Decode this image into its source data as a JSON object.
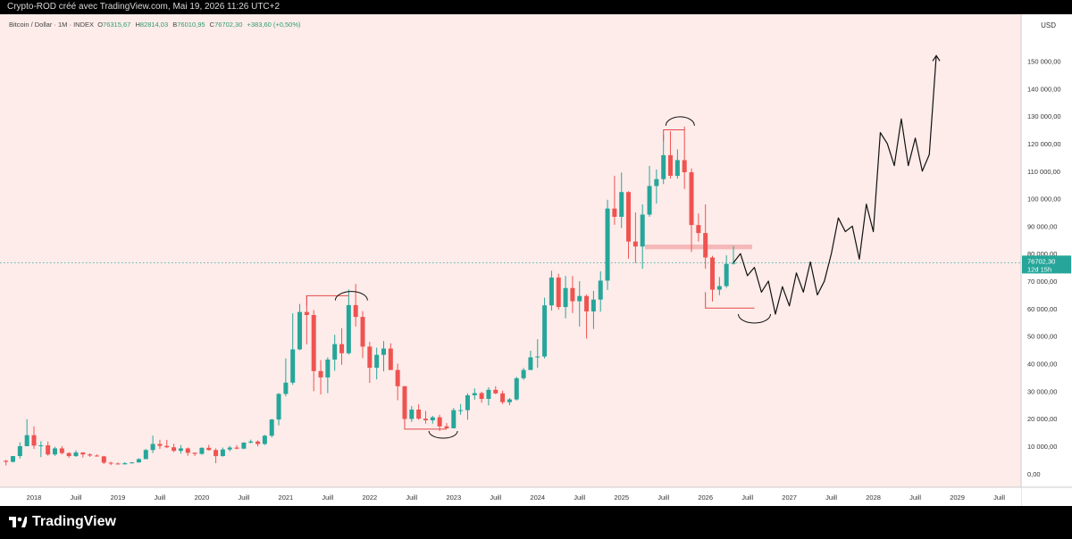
{
  "header": {
    "caption": "Crypto-ROD créé avec TradingView.com, Mai 19, 2026 11:26 UTC+2"
  },
  "legend": {
    "symbol": "Bitcoin / Dollar · 1M · INDEX",
    "open_label": "O",
    "open": "76315,67",
    "high_label": "H",
    "high": "82814,03",
    "low_label": "B",
    "low": "76010,95",
    "close_label": "C",
    "close": "76702,30",
    "change": "+383,60 (+0,50%)"
  },
  "price_axis": {
    "currency": "USD",
    "current_price": "76702,30",
    "countdown": "12d 15h"
  },
  "footer": {
    "brand": "TradingView"
  },
  "colors": {
    "up": "#26a69a",
    "down": "#ef5350",
    "background": "#fdecea",
    "zone": "#f5b8b8"
  },
  "chart_data": {
    "type": "candlestick",
    "title": "Bitcoin / Dollar · 1M · INDEX",
    "ylim": [
      0,
      160000
    ],
    "y_ticks": [
      0,
      10000,
      20000,
      30000,
      40000,
      50000,
      60000,
      70000,
      80000,
      90000,
      100000,
      110000,
      120000,
      130000,
      140000,
      150000
    ],
    "y_tick_labels": [
      "0,00",
      "10 000,00",
      "20 000,00",
      "30 000,00",
      "40 000,00",
      "50 000,00",
      "60 000,00",
      "70 000,00",
      "80 000,00",
      "90 000,00",
      "100 000,00",
      "110 000,00",
      "120 000,00",
      "130 000,00",
      "140 000,00",
      "150 000,00"
    ],
    "x_ticks": [
      {
        "date": "2018-01",
        "label": "2018"
      },
      {
        "date": "2018-07",
        "label": "Juill"
      },
      {
        "date": "2019-01",
        "label": "2019"
      },
      {
        "date": "2019-07",
        "label": "Juill"
      },
      {
        "date": "2020-01",
        "label": "2020"
      },
      {
        "date": "2020-07",
        "label": "Juill"
      },
      {
        "date": "2021-01",
        "label": "2021"
      },
      {
        "date": "2021-07",
        "label": "Juill"
      },
      {
        "date": "2022-01",
        "label": "2022"
      },
      {
        "date": "2022-07",
        "label": "Juill"
      },
      {
        "date": "2023-01",
        "label": "2023"
      },
      {
        "date": "2023-07",
        "label": "Juill"
      },
      {
        "date": "2024-01",
        "label": "2024"
      },
      {
        "date": "2024-07",
        "label": "Juill"
      },
      {
        "date": "2025-01",
        "label": "2025"
      },
      {
        "date": "2025-07",
        "label": "Juill"
      },
      {
        "date": "2026-01",
        "label": "2026"
      },
      {
        "date": "2026-07",
        "label": "Juill"
      },
      {
        "date": "2027-01",
        "label": "2027"
      },
      {
        "date": "2027-07",
        "label": "Juill"
      },
      {
        "date": "2028-01",
        "label": "2028"
      },
      {
        "date": "2028-07",
        "label": "Juill"
      },
      {
        "date": "2029-01",
        "label": "2029"
      },
      {
        "date": "2029-07",
        "label": "Juill"
      }
    ],
    "columns": [
      "date",
      "open",
      "high",
      "low",
      "close"
    ],
    "candles": [
      [
        "2017-09",
        4700,
        5000,
        3000,
        4300
      ],
      [
        "2017-10",
        4300,
        6400,
        4100,
        6400
      ],
      [
        "2017-11",
        6400,
        11400,
        5500,
        10000
      ],
      [
        "2017-12",
        10000,
        19800,
        10000,
        14000
      ],
      [
        "2018-01",
        14000,
        17200,
        9000,
        10200
      ],
      [
        "2018-02",
        10200,
        11800,
        6000,
        10300
      ],
      [
        "2018-03",
        10300,
        11700,
        6500,
        7000
      ],
      [
        "2018-04",
        7000,
        9800,
        6500,
        9200
      ],
      [
        "2018-05",
        9200,
        10000,
        7000,
        7500
      ],
      [
        "2018-06",
        7500,
        7800,
        5800,
        6400
      ],
      [
        "2018-07",
        6400,
        8500,
        6100,
        7700
      ],
      [
        "2018-08",
        7700,
        7800,
        5900,
        7000
      ],
      [
        "2018-09",
        7000,
        7400,
        6100,
        6600
      ],
      [
        "2018-10",
        6600,
        7000,
        6200,
        6300
      ],
      [
        "2018-11",
        6300,
        6500,
        3500,
        4000
      ],
      [
        "2018-12",
        4000,
        4300,
        3100,
        3700
      ],
      [
        "2019-01",
        3700,
        4100,
        3300,
        3400
      ],
      [
        "2019-02",
        3400,
        4200,
        3400,
        3800
      ],
      [
        "2019-03",
        3800,
        4200,
        3700,
        4100
      ],
      [
        "2019-04",
        4100,
        5600,
        4000,
        5300
      ],
      [
        "2019-05",
        5300,
        9000,
        5300,
        8600
      ],
      [
        "2019-06",
        8600,
        13800,
        7500,
        10800
      ],
      [
        "2019-07",
        10800,
        12300,
        9000,
        10100
      ],
      [
        "2019-08",
        10100,
        12300,
        9300,
        9600
      ],
      [
        "2019-09",
        9600,
        10900,
        7800,
        8300
      ],
      [
        "2019-10",
        8300,
        10400,
        7300,
        9200
      ],
      [
        "2019-11",
        9200,
        9500,
        6500,
        7600
      ],
      [
        "2019-12",
        7600,
        7700,
        6400,
        7200
      ],
      [
        "2020-01",
        7200,
        9600,
        6900,
        9400
      ],
      [
        "2020-02",
        9400,
        10500,
        8400,
        8600
      ],
      [
        "2020-03",
        8600,
        9200,
        3800,
        6400
      ],
      [
        "2020-04",
        6400,
        9500,
        6200,
        8800
      ],
      [
        "2020-05",
        8800,
        10100,
        8100,
        9500
      ],
      [
        "2020-06",
        9500,
        10400,
        8900,
        9100
      ],
      [
        "2020-07",
        9100,
        11400,
        8900,
        11300
      ],
      [
        "2020-08",
        11300,
        12400,
        11000,
        11700
      ],
      [
        "2020-09",
        11700,
        12100,
        9900,
        10800
      ],
      [
        "2020-10",
        10800,
        14100,
        10400,
        13800
      ],
      [
        "2020-11",
        13800,
        19900,
        13200,
        19700
      ],
      [
        "2020-12",
        19700,
        29300,
        17600,
        29000
      ],
      [
        "2021-01",
        29000,
        41900,
        28100,
        33100
      ],
      [
        "2021-02",
        33100,
        58300,
        32300,
        45200
      ],
      [
        "2021-03",
        45200,
        61700,
        44900,
        58800
      ],
      [
        "2021-04",
        58800,
        64800,
        47000,
        57700
      ],
      [
        "2021-05",
        57700,
        59500,
        30000,
        37300
      ],
      [
        "2021-06",
        37300,
        41300,
        28800,
        35000
      ],
      [
        "2021-07",
        35000,
        42300,
        29300,
        41500
      ],
      [
        "2021-08",
        41500,
        50500,
        37400,
        47100
      ],
      [
        "2021-09",
        47100,
        52900,
        39600,
        43800
      ],
      [
        "2021-10",
        43800,
        67000,
        43300,
        61300
      ],
      [
        "2021-11",
        61300,
        69000,
        53500,
        57000
      ],
      [
        "2021-12",
        57000,
        59100,
        42000,
        46200
      ],
      [
        "2022-01",
        46200,
        47900,
        33000,
        38500
      ],
      [
        "2022-02",
        38500,
        45800,
        34300,
        43200
      ],
      [
        "2022-03",
        43200,
        48200,
        37200,
        45500
      ],
      [
        "2022-04",
        45500,
        47400,
        37700,
        37700
      ],
      [
        "2022-05",
        37700,
        40000,
        26700,
        31800
      ],
      [
        "2022-06",
        31800,
        31900,
        17600,
        19900
      ],
      [
        "2022-07",
        19900,
        24600,
        18800,
        23300
      ],
      [
        "2022-08",
        23300,
        25200,
        19600,
        20000
      ],
      [
        "2022-09",
        20000,
        22800,
        18200,
        19400
      ],
      [
        "2022-10",
        19400,
        21000,
        18200,
        20500
      ],
      [
        "2022-11",
        20500,
        21400,
        15500,
        17200
      ],
      [
        "2022-12",
        17200,
        18400,
        16300,
        16500
      ],
      [
        "2023-01",
        16500,
        23900,
        16500,
        23100
      ],
      [
        "2023-02",
        23100,
        25300,
        21400,
        23100
      ],
      [
        "2023-03",
        23100,
        29200,
        19600,
        28500
      ],
      [
        "2023-04",
        28500,
        31000,
        26900,
        29300
      ],
      [
        "2023-05",
        29300,
        29800,
        25800,
        27200
      ],
      [
        "2023-06",
        27200,
        31400,
        24800,
        30500
      ],
      [
        "2023-07",
        30500,
        31800,
        28900,
        29200
      ],
      [
        "2023-08",
        29200,
        30200,
        25300,
        26000
      ],
      [
        "2023-09",
        26000,
        27500,
        24900,
        27000
      ],
      [
        "2023-10",
        27000,
        35200,
        26600,
        34700
      ],
      [
        "2023-11",
        34700,
        38400,
        34100,
        37700
      ],
      [
        "2023-12",
        37700,
        44700,
        37700,
        42300
      ],
      [
        "2024-01",
        42300,
        48900,
        38500,
        42600
      ],
      [
        "2024-02",
        42600,
        64000,
        41900,
        61200
      ],
      [
        "2024-03",
        61200,
        73800,
        59300,
        71300
      ],
      [
        "2024-04",
        71300,
        72700,
        59600,
        60600
      ],
      [
        "2024-05",
        60600,
        71900,
        56500,
        67500
      ],
      [
        "2024-06",
        67500,
        71900,
        58400,
        62700
      ],
      [
        "2024-07",
        62700,
        70000,
        53500,
        64600
      ],
      [
        "2024-08",
        64600,
        65100,
        49100,
        59000
      ],
      [
        "2024-09",
        59000,
        66500,
        52600,
        63300
      ],
      [
        "2024-10",
        63300,
        73600,
        58900,
        70200
      ],
      [
        "2024-11",
        70200,
        99600,
        66800,
        96400
      ],
      [
        "2024-12",
        96400,
        108300,
        90500,
        93400
      ],
      [
        "2025-01",
        93400,
        109500,
        89300,
        102400
      ],
      [
        "2025-02",
        102400,
        102700,
        78200,
        84400
      ],
      [
        "2025-03",
        84400,
        95000,
        76600,
        82600
      ],
      [
        "2025-04",
        82600,
        97900,
        74500,
        94200
      ],
      [
        "2025-05",
        94200,
        111900,
        93400,
        104600
      ],
      [
        "2025-06",
        104600,
        110600,
        98200,
        107100
      ],
      [
        "2025-07",
        107100,
        123200,
        105300,
        115800
      ],
      [
        "2025-08",
        115800,
        124500,
        107300,
        108300
      ],
      [
        "2025-09",
        108300,
        117900,
        107300,
        114000
      ],
      [
        "2025-10",
        114000,
        126200,
        103500,
        109600
      ],
      [
        "2025-11",
        109600,
        111000,
        80600,
        90400
      ],
      [
        "2025-12",
        90400,
        94600,
        84400,
        87500
      ],
      [
        "2026-01",
        87500,
        97900,
        74500,
        78600
      ],
      [
        "2026-02",
        78600,
        79200,
        62600,
        66900
      ],
      [
        "2026-03",
        66900,
        71500,
        64900,
        68200
      ],
      [
        "2026-04",
        68200,
        79400,
        67600,
        76300
      ],
      [
        "2026-05",
        76315.67,
        82814.03,
        76010.95,
        76702.3
      ]
    ],
    "projection": [
      [
        "2026-05",
        76700
      ],
      [
        "2026-06",
        80000
      ],
      [
        "2026-07",
        72000
      ],
      [
        "2026-08",
        75000
      ],
      [
        "2026-09",
        66000
      ],
      [
        "2026-10",
        70000
      ],
      [
        "2026-11",
        58000
      ],
      [
        "2026-12",
        68000
      ],
      [
        "2027-01",
        61000
      ],
      [
        "2027-02",
        73000
      ],
      [
        "2027-03",
        66000
      ],
      [
        "2027-04",
        77000
      ],
      [
        "2027-05",
        65000
      ],
      [
        "2027-06",
        70000
      ],
      [
        "2027-07",
        80000
      ],
      [
        "2027-08",
        93000
      ],
      [
        "2027-09",
        88000
      ],
      [
        "2027-10",
        90000
      ],
      [
        "2027-11",
        78000
      ],
      [
        "2027-12",
        98000
      ],
      [
        "2028-01",
        88000
      ],
      [
        "2028-02",
        124000
      ],
      [
        "2028-03",
        120000
      ],
      [
        "2028-04",
        112000
      ],
      [
        "2028-05",
        129000
      ],
      [
        "2028-06",
        112000
      ],
      [
        "2028-07",
        122000
      ],
      [
        "2028-08",
        110000
      ],
      [
        "2028-09",
        116000
      ],
      [
        "2028-10",
        152000
      ]
    ]
  }
}
